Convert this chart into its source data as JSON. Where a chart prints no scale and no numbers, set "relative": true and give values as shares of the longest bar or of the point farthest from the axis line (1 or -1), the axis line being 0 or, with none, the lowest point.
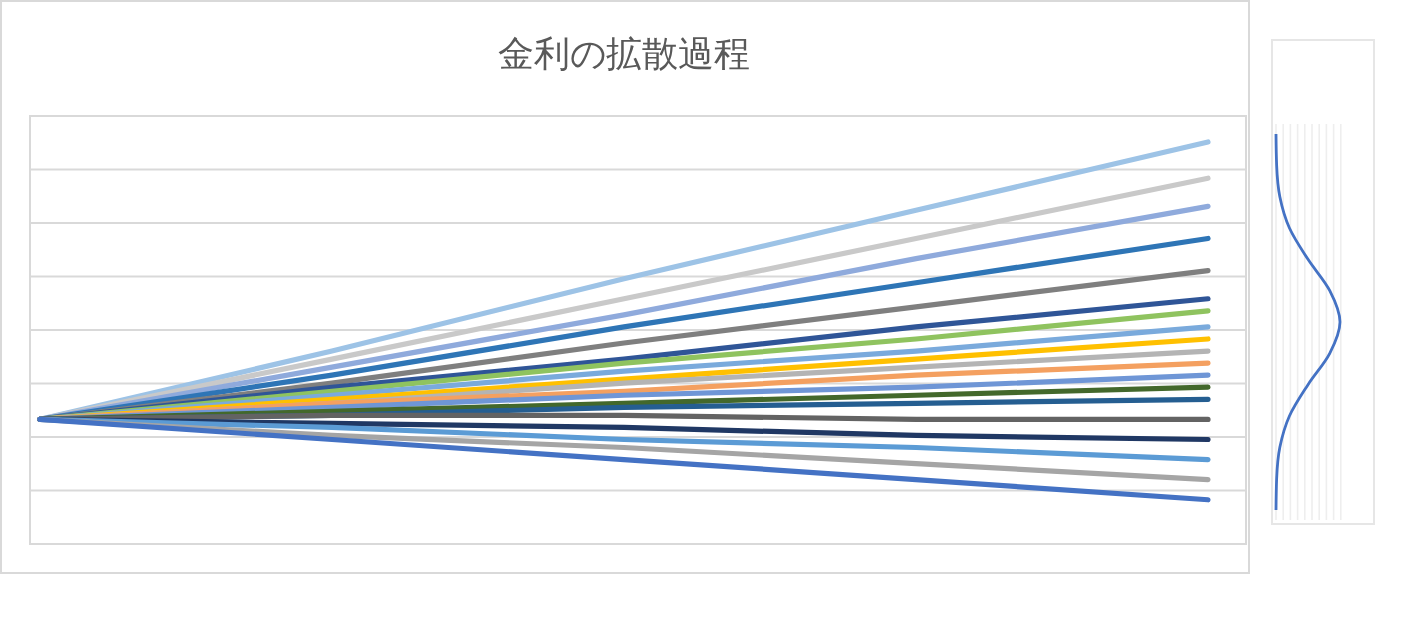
{
  "chart_data": [
    {
      "type": "line",
      "title": "金利の拡散過程",
      "relative": true,
      "grid": true,
      "categories": [
        null,
        null,
        null,
        null,
        null
      ],
      "series": [
        {
          "color": "#9dc3e6",
          "values": [
            0.31,
            0.48,
            0.66,
            0.83,
            1
          ]
        },
        {
          "color": "#c9c9c9",
          "values": [
            0.31,
            0.46,
            0.61,
            0.76,
            0.91
          ]
        },
        {
          "color": "#8faadc",
          "values": [
            0.31,
            0.44,
            0.57,
            0.71,
            0.84
          ]
        },
        {
          "color": "#2e75b6",
          "values": [
            0.31,
            0.42,
            0.54,
            0.65,
            0.76
          ]
        },
        {
          "color": "#7f7f7f",
          "values": [
            0.31,
            0.4,
            0.5,
            0.59,
            0.68
          ]
        },
        {
          "color": "#2f5597",
          "values": [
            0.31,
            0.39,
            0.46,
            0.54,
            0.61
          ]
        },
        {
          "color": "#8fc35f",
          "values": [
            0.31,
            0.38,
            0.45,
            0.51,
            0.58
          ]
        },
        {
          "color": "#7aaadc",
          "values": [
            0.31,
            0.37,
            0.43,
            0.48,
            0.54
          ]
        },
        {
          "color": "#ffc000",
          "values": [
            0.31,
            0.36,
            0.41,
            0.46,
            0.51
          ]
        },
        {
          "color": "#b4b4b4",
          "values": [
            0.31,
            0.35,
            0.4,
            0.44,
            0.48
          ]
        },
        {
          "color": "#f4a060",
          "values": [
            0.31,
            0.35,
            0.38,
            0.42,
            0.45
          ]
        },
        {
          "color": "#6f96d6",
          "values": [
            0.31,
            0.34,
            0.37,
            0.39,
            0.42
          ]
        },
        {
          "color": "#43682b",
          "values": [
            0.31,
            0.33,
            0.35,
            0.37,
            0.39
          ]
        },
        {
          "color": "#255e91",
          "values": [
            0.31,
            0.32,
            0.34,
            0.35,
            0.36
          ]
        },
        {
          "color": "#636363",
          "values": [
            0.31,
            0.32,
            0.32,
            0.31,
            0.31
          ]
        },
        {
          "color": "#203864",
          "values": [
            0.31,
            0.3,
            0.29,
            0.27,
            0.26
          ]
        },
        {
          "color": "#5b9bd5",
          "values": [
            0.31,
            0.29,
            0.26,
            0.24,
            0.21
          ]
        },
        {
          "color": "#a5a5a5",
          "values": [
            0.31,
            0.27,
            0.24,
            0.2,
            0.16
          ]
        },
        {
          "color": "#4472c4",
          "values": [
            0.31,
            0.26,
            0.21,
            0.16,
            0.11
          ]
        }
      ]
    }
  ]
}
